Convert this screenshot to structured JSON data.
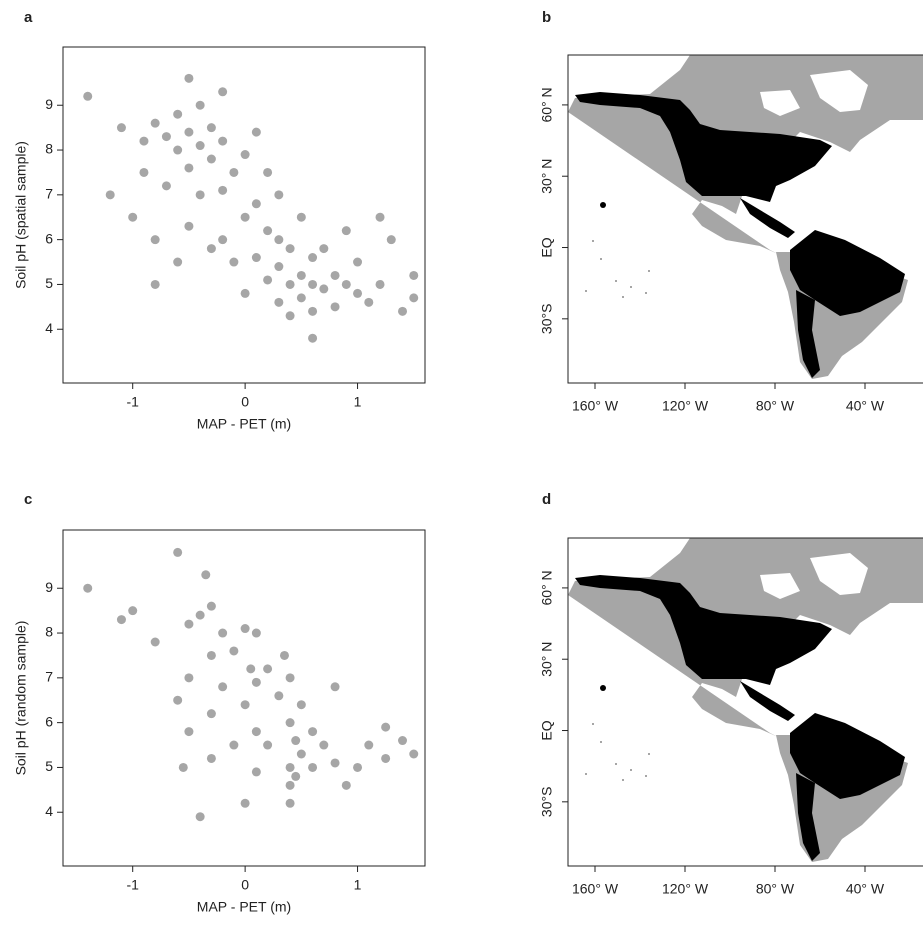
{
  "chart_data": [
    {
      "type": "scatter",
      "panel": "a",
      "xlabel": "MAP - PET (m)",
      "ylabel": "Soil pH (spatial sample)",
      "xlim": [
        -1.62,
        1.6
      ],
      "ylim": [
        2.8,
        10.3
      ],
      "xticks": [
        -1,
        0,
        1
      ],
      "yticks": [
        4,
        5,
        6,
        7,
        8,
        9
      ],
      "color": "#000000",
      "x": [
        -1.4,
        -1.2,
        -1.1,
        -1.0,
        -0.9,
        -0.9,
        -0.8,
        -0.8,
        -0.7,
        -0.7,
        -0.6,
        -0.6,
        -0.6,
        -0.5,
        -0.5,
        -0.5,
        -0.4,
        -0.4,
        -0.4,
        -0.3,
        -0.3,
        -0.3,
        -0.2,
        -0.2,
        -0.2,
        -0.1,
        -0.1,
        0.0,
        0.0,
        0.0,
        0.1,
        0.1,
        0.1,
        0.2,
        0.2,
        0.2,
        0.3,
        0.3,
        0.3,
        0.4,
        0.4,
        0.4,
        0.5,
        0.5,
        0.5,
        0.6,
        0.6,
        0.6,
        0.7,
        0.7,
        0.8,
        0.8,
        0.9,
        0.9,
        1.0,
        1.0,
        1.1,
        1.2,
        1.3,
        1.4,
        1.5,
        1.5,
        -0.5,
        -0.2,
        0.3,
        0.6,
        -0.8,
        1.2
      ],
      "y": [
        9.2,
        7.0,
        8.5,
        6.5,
        8.2,
        7.5,
        8.6,
        6.0,
        8.3,
        7.2,
        8.8,
        8.0,
        5.5,
        8.4,
        7.6,
        6.3,
        8.1,
        9.0,
        7.0,
        8.5,
        7.8,
        5.8,
        8.2,
        7.1,
        6.0,
        7.5,
        5.5,
        7.9,
        6.5,
        4.8,
        6.8,
        5.6,
        8.4,
        6.2,
        5.1,
        7.5,
        5.4,
        6.0,
        4.6,
        5.0,
        5.8,
        4.3,
        5.2,
        4.7,
        6.5,
        5.0,
        5.6,
        4.4,
        4.9,
        5.8,
        5.2,
        4.5,
        5.0,
        6.2,
        4.8,
        5.5,
        4.6,
        5.0,
        6.0,
        4.4,
        5.2,
        4.7,
        9.6,
        9.3,
        7.0,
        3.8,
        5.0,
        6.5
      ]
    },
    {
      "type": "map",
      "panel": "b",
      "xlim": [
        -172,
        -12
      ],
      "ylim": [
        -57,
        81
      ],
      "xticks": [
        {
          "value": -160,
          "label": "160° W"
        },
        {
          "value": -120,
          "label": "120° W"
        },
        {
          "value": -80,
          "label": "80° W"
        },
        {
          "value": -40,
          "label": "40° W"
        }
      ],
      "yticks": [
        {
          "value": 60,
          "label": "60° N"
        },
        {
          "value": 30,
          "label": "30° N"
        },
        {
          "value": 0,
          "label": "EQ"
        },
        {
          "value": -30,
          "label": "30°S"
        }
      ]
    },
    {
      "type": "scatter",
      "panel": "c",
      "xlabel": "MAP - PET (m)",
      "ylabel": "Soil pH (random sample)",
      "xlim": [
        -1.62,
        1.6
      ],
      "ylim": [
        2.8,
        10.3
      ],
      "xticks": [
        -1,
        0,
        1
      ],
      "yticks": [
        4,
        5,
        6,
        7,
        8,
        9
      ],
      "color": "#000000",
      "x": [
        -1.4,
        -1.1,
        -1.0,
        -0.8,
        -0.6,
        -0.55,
        -0.5,
        -0.5,
        -0.5,
        -0.4,
        -0.35,
        -0.3,
        -0.3,
        -0.3,
        -0.3,
        -0.2,
        -0.2,
        -0.1,
        -0.1,
        0.0,
        0.0,
        0.05,
        0.1,
        0.1,
        0.1,
        0.1,
        0.2,
        0.2,
        0.3,
        0.35,
        0.4,
        0.4,
        0.4,
        0.4,
        0.45,
        0.45,
        0.5,
        0.5,
        0.6,
        0.6,
        0.7,
        0.8,
        0.9,
        1.0,
        1.1,
        1.25,
        1.25,
        1.4,
        1.5,
        -0.6,
        -0.4,
        0.0,
        0.4,
        0.8
      ],
      "y": [
        9.0,
        8.3,
        8.5,
        7.8,
        6.5,
        5.0,
        8.2,
        7.0,
        5.8,
        8.4,
        9.3,
        8.6,
        7.5,
        6.2,
        5.2,
        8.0,
        6.8,
        7.6,
        5.5,
        8.1,
        6.4,
        7.2,
        8.0,
        6.9,
        5.8,
        4.9,
        7.2,
        5.5,
        6.6,
        7.5,
        7.0,
        6.0,
        5.0,
        4.6,
        5.6,
        4.8,
        5.3,
        6.4,
        5.0,
        5.8,
        5.5,
        5.1,
        4.6,
        5.0,
        5.5,
        5.9,
        5.2,
        5.6,
        5.3,
        9.8,
        3.9,
        4.2,
        4.2,
        6.8
      ]
    },
    {
      "type": "map",
      "panel": "d",
      "xlim": [
        -172,
        -12
      ],
      "ylim": [
        -57,
        81
      ],
      "xticks": [
        {
          "value": -160,
          "label": "160° W"
        },
        {
          "value": -120,
          "label": "120° W"
        },
        {
          "value": -80,
          "label": "80° W"
        },
        {
          "value": -40,
          "label": "40° W"
        }
      ],
      "yticks": [
        {
          "value": 60,
          "label": "60° N"
        },
        {
          "value": 30,
          "label": "30° N"
        },
        {
          "value": 0,
          "label": "EQ"
        },
        {
          "value": -30,
          "label": "30°S"
        }
      ]
    }
  ]
}
